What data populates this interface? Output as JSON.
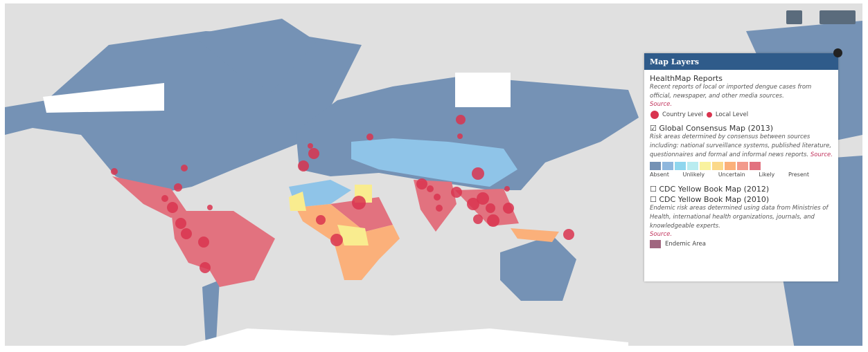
{
  "panel": {
    "title": "Map Layers",
    "healthmap": {
      "title": "HealthMap Reports",
      "description": "Recent reports of local or imported dengue cases from official, newspaper, and other media sources.",
      "source": "Source.",
      "legend": [
        "Country Level",
        "Local Level"
      ]
    },
    "consensus": {
      "title": "Global Consensus Map (2013)",
      "description": "Risk areas determined by consensus between sources including: national surveillance systems, published literature, questionnaires and formal and informal news reports.",
      "source": "Source.",
      "legend": [
        "Absent",
        "Unlikely",
        "Uncertain",
        "Likely",
        "Present"
      ]
    },
    "cdc": {
      "layers": [
        "CDC Yellow Book Map (2012)",
        "CDC Yellow Book Map (2010)"
      ],
      "description": "Endemic risk areas determined using data from Ministries of Health, international health organizations, journals, and knowledgeable experts.",
      "source": "Source.",
      "legend": "Endemic Area"
    }
  }
}
